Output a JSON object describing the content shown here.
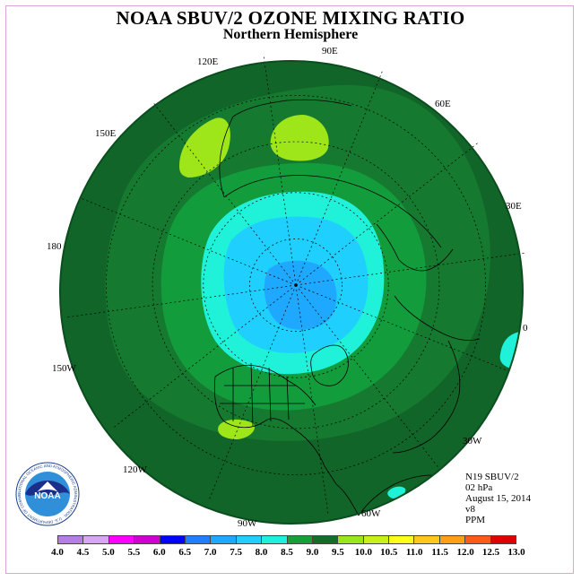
{
  "title": "NOAA SBUV/2 OZONE MIXING RATIO",
  "subtitle": "Northern Hemisphere",
  "lon_labels": {
    "e90": "90E",
    "e60": "60E",
    "e30": "30E",
    "e0": "0",
    "w30": "30W",
    "w60": "60W",
    "w90": "90W",
    "w120": "120W",
    "w150": "150W",
    "d180": "180",
    "e150": "150E",
    "e120": "120E"
  },
  "info": {
    "instrument": "N19 SBUV/2",
    "level": "02 hPa",
    "date": "August 15, 2014",
    "version": "v8",
    "units": "PPM"
  },
  "legend": {
    "labels": [
      "4.0",
      "4.5",
      "5.0",
      "5.5",
      "6.0",
      "6.5",
      "7.0",
      "7.5",
      "8.0",
      "8.5",
      "9.0",
      "9.5",
      "10.0",
      "10.5",
      "11.0",
      "11.5",
      "12.0",
      "12.5",
      "13.0"
    ],
    "colors": [
      "#b57ee6",
      "#d8a6f0",
      "#ff00ff",
      "#d000d0",
      "#0000ff",
      "#1f7fff",
      "#1fa8ff",
      "#1fd0ff",
      "#1ff0d8",
      "#199e3c",
      "#136e2a",
      "#9ae619",
      "#c8f01a",
      "#ffff1a",
      "#ffc819",
      "#ff9e19",
      "#ff5a19",
      "#e00000",
      "#8b5a2b"
    ]
  },
  "colors": {
    "c80": "#139c3c",
    "c85": "#157a30",
    "c90": "#126528",
    "c95": "#9ee619",
    "c75": "#1ff2d8",
    "c70": "#1fd0ff",
    "c65": "#1fa8ff",
    "c60": "#1f7fff"
  },
  "logo": {
    "text": "NOAA",
    "ring_text": "NATIONAL OCEANIC AND ATMOSPHERIC ADMINISTRATION · U.S. DEPARTMENT OF COMMERCE"
  }
}
